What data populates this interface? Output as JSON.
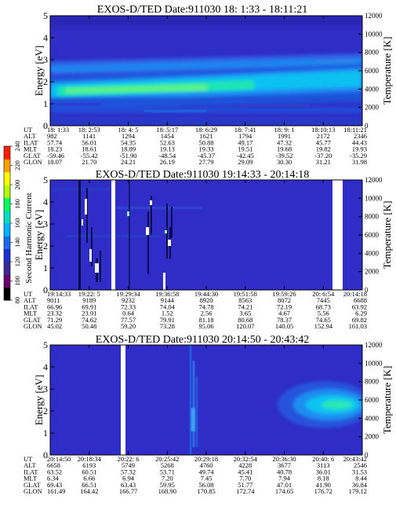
{
  "colorbar": {
    "label": "Second Harmonic Current",
    "ticks": [
      "80",
      "100",
      "120",
      "140",
      "160",
      "180",
      "200",
      "220",
      "240"
    ],
    "colors": [
      "#000000",
      "#6b006b",
      "#3a2a9a",
      "#1e2ed0",
      "#1a6cf0",
      "#00b4ff",
      "#00e0c0",
      "#00ff60",
      "#b4ff00",
      "#ffff00",
      "#ffa000",
      "#ff2000"
    ]
  },
  "chart_data": [
    {
      "type": "heatmap",
      "title": "EXOS-D/TED   Date:911030  18: 1:33 - 18:11:21",
      "ylabel": "Energy [eV]",
      "ylabel_right": "Temperature [K]",
      "ylim": [
        0,
        5
      ],
      "yticks": [
        "0",
        "1",
        "2",
        "3",
        "4",
        "5"
      ],
      "ylim_right": [
        0,
        12000
      ],
      "yticks_right": [
        "0",
        "2000",
        "4000",
        "6000",
        "8000",
        "10000",
        "12000"
      ],
      "row_labels": [
        "UT",
        "ALT",
        "ILAT",
        "MLT",
        "GLAT",
        "GLON"
      ],
      "columns": [
        [
          "18: 1:33",
          "982",
          "57.74",
          "18.23",
          "-59.46",
          "18.07"
        ],
        [
          "18: 2:53",
          "1141",
          "56.01",
          "18.61",
          "-55.42",
          "21.70"
        ],
        [
          "18: 4: 5",
          "1294",
          "54.35",
          "18.89",
          "-51.90",
          "24.21"
        ],
        [
          "18: 5:17",
          "1454",
          "52.63",
          "19.13",
          "-48.54",
          "26.19"
        ],
        [
          "18: 6:29",
          "1621",
          "50.88",
          "19.33",
          "-45.37",
          "27.79"
        ],
        [
          "18: 7:41",
          "1794",
          "49.17",
          "19.51",
          "-42.45",
          "29.09"
        ],
        [
          "18: 9: 1",
          "1991",
          "47.32",
          "19.68",
          "-39.52",
          "30.30"
        ],
        [
          "18:10:13",
          "2172",
          "45.77",
          "19.82",
          "-37.20",
          "31.21"
        ],
        [
          "18:11:21",
          "2346",
          "44.43",
          "19.93",
          "-35.29",
          "31.98"
        ]
      ]
    },
    {
      "type": "heatmap",
      "title": "EXOS-D/TED   Date:911030  19:14:33 - 20:14:18",
      "ylabel": "Energy [eV]",
      "ylabel_right": "Temperature [K]",
      "ylim": [
        0,
        5
      ],
      "yticks": [
        "0",
        "1",
        "2",
        "3",
        "4",
        "5"
      ],
      "ylim_right": [
        0,
        12000
      ],
      "yticks_right": [
        "0",
        "2000",
        "4000",
        "6000",
        "8000",
        "10000",
        "12000"
      ],
      "row_labels": [
        "UT",
        "ALT",
        "ILAT",
        "MLT",
        "GLAT",
        "GLON"
      ],
      "columns": [
        [
          "19:14:33",
          "9011",
          "66.96",
          "23.32",
          "71.29",
          "45.02"
        ],
        [
          "19:22: 5",
          "9189",
          "69.91",
          "23.91",
          "74.62",
          "50.48"
        ],
        [
          "19:29:34",
          "9232",
          "72.33",
          "0.64",
          "77.57",
          "59.20"
        ],
        [
          "19:36:58",
          "9144",
          "74.04",
          "1.52",
          "79.91",
          "73.28"
        ],
        [
          "19:44:30",
          "8920",
          "74.78",
          "2.56",
          "81.18",
          "95.06"
        ],
        [
          "19:51:58",
          "8563",
          "74.21",
          "3.65",
          "80.68",
          "120.07"
        ],
        [
          "19:59:26",
          "8072",
          "72.19",
          "4.67",
          "78.37",
          "140.05"
        ],
        [
          "20: 6:54",
          "7445",
          "68.73",
          "5.56",
          "74.65",
          "152.94"
        ],
        [
          "20:14:18",
          "6688",
          "63.92",
          "6.29",
          "69.82",
          "161.03"
        ]
      ]
    },
    {
      "type": "heatmap",
      "title": "EXOS-D/TED   Date:911030  20:14:50 - 20:43:42",
      "ylabel": "Energy [eV]",
      "ylabel_right": "Temperature [K]",
      "ylim": [
        0,
        5
      ],
      "yticks": [
        "0",
        "1",
        "2",
        "3",
        "4",
        "5"
      ],
      "ylim_right": [
        0,
        12000
      ],
      "yticks_right": [
        "0",
        "2000",
        "4000",
        "6000",
        "8000",
        "10000",
        "12000"
      ],
      "row_labels": [
        "UT",
        "ALT",
        "ILAT",
        "MLT",
        "GLAT",
        "GLON"
      ],
      "columns": [
        [
          "20:14:50",
          "6658",
          "63.52",
          "6.34",
          "69.43",
          "161.49"
        ],
        [
          "20:18:34",
          "6193",
          "60.51",
          "6.66",
          "66.51",
          "164.42"
        ],
        [
          "20:22: 6",
          "5749",
          "57.32",
          "6.94",
          "63.43",
          "166.77"
        ],
        [
          "20:25:42",
          "5268",
          "53.71",
          "7.20",
          "59.95",
          "168.90"
        ],
        [
          "20:29:18",
          "4760",
          "49.74",
          "7.45",
          "56.08",
          "170.85"
        ],
        [
          "20:32:54",
          "4228",
          "45.41",
          "7.70",
          "51.77",
          "172.74"
        ],
        [
          "20:36:30",
          "3677",
          "40.78",
          "7.94",
          "47.01",
          "174.65"
        ],
        [
          "20:40: 6",
          "3113",
          "36.01",
          "8.18",
          "41.90",
          "176.72"
        ],
        [
          "20:43:42",
          "2546",
          "31.53",
          "8.44",
          "36.84",
          "179.12"
        ]
      ]
    }
  ]
}
